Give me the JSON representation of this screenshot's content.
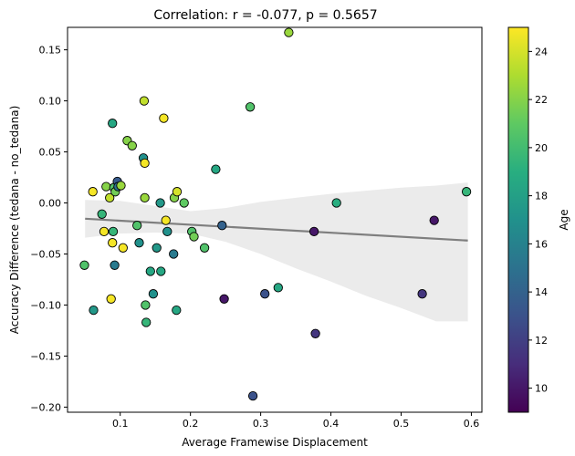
{
  "chart_data": {
    "type": "scatter",
    "title": "Correlation: r = -0.077, p = 0.5657",
    "xlabel": "Average Framewise Displacement",
    "ylabel": "Accuracy Difference (tedana - no_tedana)",
    "xlim": [
      0.025,
      0.615
    ],
    "ylim": [
      -0.205,
      0.172
    ],
    "xticks": [
      0.1,
      0.2,
      0.3,
      0.4,
      0.5,
      0.6
    ],
    "xtick_labels": [
      "0.1",
      "0.2",
      "0.3",
      "0.4",
      "0.5",
      "0.6"
    ],
    "yticks": [
      -0.2,
      -0.15,
      -0.1,
      -0.05,
      0.0,
      0.05,
      0.1,
      0.15
    ],
    "ytick_labels": [
      "−0.20",
      "−0.15",
      "−0.10",
      "−0.05",
      "0.00",
      "0.05",
      "0.10",
      "0.15"
    ],
    "colorbar": {
      "label": "Age",
      "range": [
        9,
        25
      ],
      "ticks": [
        10,
        12,
        14,
        16,
        18,
        20,
        22,
        24
      ],
      "tick_labels": [
        "10",
        "12",
        "14",
        "16",
        "18",
        "20",
        "22",
        "24"
      ],
      "colormap": "viridis"
    },
    "regression": {
      "intercept": -0.0135,
      "slope": -0.0392,
      "ci_band": [
        {
          "x": 0.05,
          "lo": -0.034,
          "hi": 0.003
        },
        {
          "x": 0.1,
          "lo": -0.03,
          "hi": 0.002
        },
        {
          "x": 0.15,
          "lo": -0.029,
          "hi": -0.003
        },
        {
          "x": 0.2,
          "lo": -0.03,
          "hi": -0.008
        },
        {
          "x": 0.25,
          "lo": -0.038,
          "hi": -0.005
        },
        {
          "x": 0.3,
          "lo": -0.05,
          "hi": 0.001
        },
        {
          "x": 0.35,
          "lo": -0.064,
          "hi": 0.005
        },
        {
          "x": 0.4,
          "lo": -0.077,
          "hi": 0.009
        },
        {
          "x": 0.45,
          "lo": -0.091,
          "hi": 0.012
        },
        {
          "x": 0.5,
          "lo": -0.103,
          "hi": 0.015
        },
        {
          "x": 0.55,
          "lo": -0.116,
          "hi": 0.017
        },
        {
          "x": 0.595,
          "lo": -0.116,
          "hi": 0.02
        }
      ],
      "line_color": "#7f7f7f",
      "band_color": "#ebebeb"
    },
    "points": [
      {
        "x": 0.049,
        "y": -0.061,
        "age": 20.5
      },
      {
        "x": 0.061,
        "y": 0.011,
        "age": 24.8
      },
      {
        "x": 0.062,
        "y": -0.105,
        "age": 17.5
      },
      {
        "x": 0.074,
        "y": -0.011,
        "age": 19.5
      },
      {
        "x": 0.077,
        "y": -0.028,
        "age": 24.8
      },
      {
        "x": 0.08,
        "y": 0.016,
        "age": 22.0
      },
      {
        "x": 0.085,
        "y": 0.005,
        "age": 23.5
      },
      {
        "x": 0.087,
        "y": -0.094,
        "age": 24.8
      },
      {
        "x": 0.089,
        "y": -0.039,
        "age": 24.8
      },
      {
        "x": 0.089,
        "y": 0.078,
        "age": 18.5
      },
      {
        "x": 0.09,
        "y": -0.028,
        "age": 19.5
      },
      {
        "x": 0.091,
        "y": 0.015,
        "age": 20.5
      },
      {
        "x": 0.092,
        "y": -0.061,
        "age": 15.5
      },
      {
        "x": 0.093,
        "y": 0.011,
        "age": 21.5
      },
      {
        "x": 0.096,
        "y": 0.021,
        "age": 13.5
      },
      {
        "x": 0.097,
        "y": 0.016,
        "age": 15.0
      },
      {
        "x": 0.101,
        "y": 0.017,
        "age": 22.5
      },
      {
        "x": 0.104,
        "y": -0.044,
        "age": 24.8
      },
      {
        "x": 0.11,
        "y": 0.061,
        "age": 22.0
      },
      {
        "x": 0.117,
        "y": 0.056,
        "age": 22.0
      },
      {
        "x": 0.124,
        "y": -0.022,
        "age": 20.5
      },
      {
        "x": 0.127,
        "y": -0.039,
        "age": 17.0
      },
      {
        "x": 0.133,
        "y": 0.044,
        "age": 17.0
      },
      {
        "x": 0.134,
        "y": 0.1,
        "age": 23.5
      },
      {
        "x": 0.135,
        "y": 0.039,
        "age": 24.8
      },
      {
        "x": 0.135,
        "y": 0.005,
        "age": 22.5
      },
      {
        "x": 0.136,
        "y": -0.1,
        "age": 20.5
      },
      {
        "x": 0.137,
        "y": -0.117,
        "age": 19.5
      },
      {
        "x": 0.143,
        "y": -0.067,
        "age": 18.5
      },
      {
        "x": 0.147,
        "y": -0.089,
        "age": 17.0
      },
      {
        "x": 0.152,
        "y": -0.044,
        "age": 17.5
      },
      {
        "x": 0.157,
        "y": 0.0,
        "age": 17.5
      },
      {
        "x": 0.158,
        "y": -0.067,
        "age": 18.5
      },
      {
        "x": 0.162,
        "y": 0.083,
        "age": 24.8
      },
      {
        "x": 0.165,
        "y": -0.017,
        "age": 24.8
      },
      {
        "x": 0.167,
        "y": -0.028,
        "age": 17.0
      },
      {
        "x": 0.176,
        "y": -0.05,
        "age": 15.5
      },
      {
        "x": 0.177,
        "y": 0.005,
        "age": 22.0
      },
      {
        "x": 0.18,
        "y": -0.105,
        "age": 18.5
      },
      {
        "x": 0.181,
        "y": 0.011,
        "age": 24.0
      },
      {
        "x": 0.191,
        "y": 0.0,
        "age": 21.0
      },
      {
        "x": 0.202,
        "y": -0.028,
        "age": 20.5
      },
      {
        "x": 0.205,
        "y": -0.033,
        "age": 21.5
      },
      {
        "x": 0.22,
        "y": -0.044,
        "age": 20.5
      },
      {
        "x": 0.236,
        "y": 0.033,
        "age": 18.5
      },
      {
        "x": 0.245,
        "y": -0.022,
        "age": 14.0
      },
      {
        "x": 0.248,
        "y": -0.094,
        "age": 10.0
      },
      {
        "x": 0.285,
        "y": 0.094,
        "age": 20.5
      },
      {
        "x": 0.289,
        "y": -0.189,
        "age": 13.0
      },
      {
        "x": 0.306,
        "y": -0.089,
        "age": 13.0
      },
      {
        "x": 0.325,
        "y": -0.083,
        "age": 18.5
      },
      {
        "x": 0.34,
        "y": 0.167,
        "age": 22.5
      },
      {
        "x": 0.376,
        "y": -0.028,
        "age": 10.0
      },
      {
        "x": 0.378,
        "y": -0.128,
        "age": 11.5
      },
      {
        "x": 0.408,
        "y": 0.0,
        "age": 19.0
      },
      {
        "x": 0.53,
        "y": -0.089,
        "age": 11.5
      },
      {
        "x": 0.547,
        "y": -0.017,
        "age": 10.0
      },
      {
        "x": 0.593,
        "y": 0.011,
        "age": 19.5
      }
    ]
  }
}
